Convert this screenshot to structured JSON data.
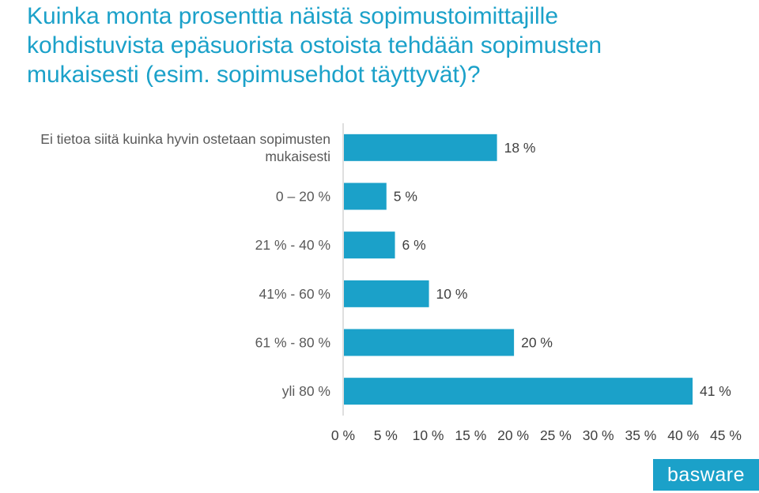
{
  "title_lines": [
    "Kuinka monta prosenttia näistä sopimustoimittajille",
    "kohdistuvista epäsuorista ostoista tehdään sopimusten",
    "mukaisesti (esim. sopimusehdot täyttyvät)?"
  ],
  "logo_text": "basware",
  "colors": {
    "bar": "#1ba1c9",
    "title": "#1ba1c9",
    "axis": "#bfbfbf"
  },
  "chart_data": {
    "type": "bar",
    "orientation": "horizontal",
    "categories": [
      [
        "Ei tietoa siitä kuinka hyvin ostetaan sopimusten",
        "mukaisesti"
      ],
      [
        "0 – 20 %"
      ],
      [
        "21 % - 40 %"
      ],
      [
        "41% - 60  %"
      ],
      [
        "61 % - 80 %"
      ],
      [
        "yli 80 %"
      ]
    ],
    "values": [
      18,
      5,
      6,
      10,
      20,
      41
    ],
    "value_labels": [
      "18 %",
      "5 %",
      "6 %",
      "10 %",
      "20 %",
      "41 %"
    ],
    "xlim": [
      0,
      45
    ],
    "x_ticks": [
      "0 %",
      "5 %",
      "10 %",
      "15 %",
      "20 %",
      "25 %",
      "30 %",
      "35 %",
      "40 %",
      "45 %"
    ],
    "grid": false,
    "legend": "none"
  }
}
